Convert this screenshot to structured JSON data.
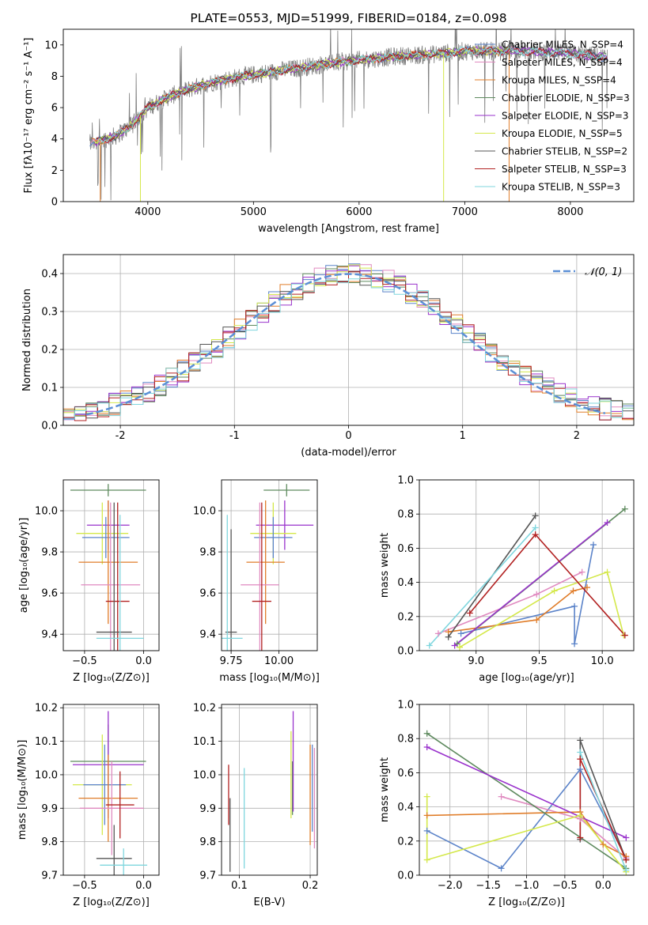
{
  "chart_data": [
    {
      "id": "spectrum",
      "type": "line",
      "title": "PLATE=0553, MJD=51999, FIBERID=0184, z=0.098",
      "xlabel": "wavelength [Angstrom, rest frame]",
      "ylabel": "Flux [fλ10⁻¹⁷ erg cm⁻² s⁻¹ A⁻¹]",
      "xlim": [
        3200,
        8600
      ],
      "ylim": [
        0,
        11
      ],
      "xticks": [
        4000,
        5000,
        6000,
        7000,
        8000
      ],
      "yticks": [
        0,
        2,
        4,
        6,
        8,
        10
      ],
      "grid": false,
      "legend_position": "top-right",
      "data_color": "#808080",
      "data_trend": {
        "x": [
          3450,
          3550,
          3700,
          3850,
          4000,
          4200,
          4400,
          4600,
          4900,
          5200,
          5500,
          5800,
          6100,
          6400,
          6700,
          7000,
          7300,
          7600,
          7900,
          8200,
          8350
        ],
        "y": [
          3.7,
          3.9,
          4.2,
          4.9,
          6.0,
          6.7,
          7.2,
          7.6,
          8.0,
          8.3,
          8.6,
          8.9,
          9.1,
          9.3,
          9.4,
          9.6,
          9.6,
          9.6,
          9.5,
          9.3,
          9.2
        ]
      },
      "series": [
        {
          "name": "Chabrier MILES, N_SSP=4",
          "color": "#5b83c9"
        },
        {
          "name": "Salpeter MILES, N_SSP=4",
          "color": "#e08ac0"
        },
        {
          "name": "Kroupa MILES, N_SSP=4",
          "color": "#e07d2a"
        },
        {
          "name": "Chabrier ELODIE, N_SSP=3",
          "color": "#5e8a5e"
        },
        {
          "name": "Salpeter ELODIE, N_SSP=3",
          "color": "#9932cc"
        },
        {
          "name": "Kroupa ELODIE, N_SSP=5",
          "color": "#d4e84a"
        },
        {
          "name": "Chabrier STELIB, N_SSP=2",
          "color": "#555555"
        },
        {
          "name": "Salpeter STELIB, N_SSP=3",
          "color": "#b22222"
        },
        {
          "name": "Kroupa STELIB, N_SSP=3",
          "color": "#7fd6de"
        }
      ]
    },
    {
      "id": "residuals",
      "type": "histogram",
      "xlabel": "(data-model)/error",
      "ylabel": "Normed distribution",
      "xlim": [
        -2.5,
        2.5
      ],
      "ylim": [
        0,
        0.45
      ],
      "xticks": [
        -2,
        -1,
        0,
        1,
        2
      ],
      "yticks": [
        0.0,
        0.1,
        0.2,
        0.3,
        0.4
      ],
      "grid": true,
      "legend": "𝒩(0, 1)",
      "legend_position": "top-right",
      "gaussian": {
        "mu": 0,
        "sigma": 1,
        "color": "#5b8fd6"
      },
      "bin_width": 0.1,
      "bin_start": -2.5,
      "colors": [
        "#5b83c9",
        "#e08ac0",
        "#e07d2a",
        "#5e8a5e",
        "#9932cc",
        "#d4e84a",
        "#555555",
        "#b22222",
        "#7fd6de"
      ]
    },
    {
      "id": "age-vs-Z",
      "type": "errorbar",
      "xlabel": "Z [log₁₀(Z/Z⊙)]",
      "ylabel": "age  [log₁₀(age/yr)]",
      "xlim": [
        -0.68,
        0.13
      ],
      "ylim": [
        9.32,
        10.15
      ],
      "xticks": [
        -0.5,
        0.0
      ],
      "xticklabels": [
        "−0.5",
        "0.0"
      ],
      "yticks": [
        9.4,
        9.6,
        9.8,
        10.0
      ],
      "grid": true,
      "points": [
        {
          "x": -0.3,
          "y": 10.1,
          "xerr": 0.32,
          "yerr": 0.03,
          "color": "#5e8a5e"
        },
        {
          "x": -0.3,
          "y": 9.93,
          "xerr": 0.18,
          "yerr": 0.12,
          "color": "#9932cc"
        },
        {
          "x": -0.35,
          "y": 9.89,
          "xerr": 0.22,
          "yerr": 0.15,
          "color": "#d4e84a"
        },
        {
          "x": -0.32,
          "y": 9.87,
          "xerr": 0.2,
          "yerr": 0.1,
          "color": "#5b83c9"
        },
        {
          "x": -0.3,
          "y": 9.75,
          "xerr": 0.25,
          "yerr": 0.3,
          "color": "#e07d2a"
        },
        {
          "x": -0.28,
          "y": 9.64,
          "xerr": 0.25,
          "yerr": 0.4,
          "color": "#e08ac0"
        },
        {
          "x": -0.22,
          "y": 9.56,
          "xerr": 0.1,
          "yerr": 0.48,
          "color": "#b22222"
        },
        {
          "x": -0.25,
          "y": 9.41,
          "xerr": 0.15,
          "yerr": 0.63,
          "color": "#555555"
        },
        {
          "x": -0.2,
          "y": 9.38,
          "xerr": 0.2,
          "yerr": 0.6,
          "color": "#7fd6de"
        }
      ]
    },
    {
      "id": "age-vs-mass",
      "type": "errorbar",
      "xlabel": "mass [log₁₀(M/M⊙)]",
      "ylabel": "",
      "xlim": [
        9.7,
        10.2
      ],
      "ylim": [
        9.32,
        10.15
      ],
      "xticks": [
        9.75,
        10.0
      ],
      "xticklabels": [
        "9.75",
        "10.00"
      ],
      "yticks": [
        9.4,
        9.6,
        9.8,
        10.0
      ],
      "grid": true,
      "points": [
        {
          "x": 10.04,
          "y": 10.1,
          "xerr": 0.12,
          "yerr": 0.03,
          "color": "#5e8a5e"
        },
        {
          "x": 10.03,
          "y": 9.93,
          "xerr": 0.15,
          "yerr": 0.12,
          "color": "#9932cc"
        },
        {
          "x": 9.97,
          "y": 9.89,
          "xerr": 0.12,
          "yerr": 0.15,
          "color": "#d4e84a"
        },
        {
          "x": 9.97,
          "y": 9.87,
          "xerr": 0.1,
          "yerr": 0.1,
          "color": "#5b83c9"
        },
        {
          "x": 9.93,
          "y": 9.75,
          "xerr": 0.1,
          "yerr": 0.3,
          "color": "#e07d2a"
        },
        {
          "x": 9.9,
          "y": 9.64,
          "xerr": 0.1,
          "yerr": 0.4,
          "color": "#e08ac0"
        },
        {
          "x": 9.91,
          "y": 9.56,
          "xerr": 0.05,
          "yerr": 0.48,
          "color": "#b22222"
        },
        {
          "x": 9.75,
          "y": 9.41,
          "xerr": 0.03,
          "yerr": 0.5,
          "color": "#555555"
        },
        {
          "x": 9.73,
          "y": 9.38,
          "xerr": 0.08,
          "yerr": 0.6,
          "color": "#7fd6de"
        }
      ]
    },
    {
      "id": "weight-vs-age",
      "type": "line",
      "xlabel": "age  [log₁₀(age/yr)]",
      "ylabel": "mass weight",
      "xlim": [
        8.55,
        10.25
      ],
      "ylim": [
        0,
        1
      ],
      "xticks": [
        9.0,
        9.5,
        10.0
      ],
      "xticklabels": [
        "9.0",
        "9.5",
        "10.0"
      ],
      "yticks": [
        0.0,
        0.2,
        0.4,
        0.6,
        0.8,
        1.0
      ],
      "grid": true,
      "series": [
        {
          "color": "#5b83c9",
          "x": [
            8.88,
            9.78,
            9.78,
            9.93
          ],
          "y": [
            0.1,
            0.26,
            0.04,
            0.62
          ]
        },
        {
          "color": "#e08ac0",
          "x": [
            8.7,
            9.48,
            9.84
          ],
          "y": [
            0.1,
            0.33,
            0.46
          ]
        },
        {
          "color": "#e07d2a",
          "x": [
            8.78,
            9.48,
            9.77,
            9.88
          ],
          "y": [
            0.11,
            0.18,
            0.35,
            0.37
          ]
        },
        {
          "color": "#5e8a5e",
          "x": [
            8.85,
            10.18
          ],
          "y": [
            0.04,
            0.83
          ]
        },
        {
          "color": "#9932cc",
          "x": [
            8.83,
            10.04
          ],
          "y": [
            0.03,
            0.75
          ]
        },
        {
          "color": "#d4e84a",
          "x": [
            8.87,
            9.62,
            10.04,
            10.17
          ],
          "y": [
            0.02,
            0.35,
            0.46,
            0.09
          ]
        },
        {
          "color": "#555555",
          "x": [
            8.78,
            9.47
          ],
          "y": [
            0.08,
            0.79
          ]
        },
        {
          "color": "#b22222",
          "x": [
            8.95,
            9.47,
            10.18
          ],
          "y": [
            0.22,
            0.68,
            0.09
          ]
        },
        {
          "color": "#7fd6de",
          "x": [
            8.63,
            9.47
          ],
          "y": [
            0.03,
            0.72
          ]
        }
      ]
    },
    {
      "id": "mass-vs-Z",
      "type": "errorbar",
      "xlabel": "Z [log₁₀(Z/Z⊙)]",
      "ylabel": "mass [log₁₀(M/M⊙)]",
      "xlim": [
        -0.68,
        0.13
      ],
      "ylim": [
        9.7,
        10.21
      ],
      "xticks": [
        -0.5,
        0.0
      ],
      "xticklabels": [
        "−0.5",
        "0.0"
      ],
      "yticks": [
        9.7,
        9.8,
        9.9,
        10.0,
        10.1,
        10.2
      ],
      "grid": true,
      "points": [
        {
          "x": -0.3,
          "y": 10.04,
          "xerr": 0.32,
          "yerr": 0.11,
          "color": "#5e8a5e"
        },
        {
          "x": -0.3,
          "y": 10.03,
          "xerr": 0.3,
          "yerr": 0.16,
          "color": "#9932cc"
        },
        {
          "x": -0.35,
          "y": 9.97,
          "xerr": 0.25,
          "yerr": 0.15,
          "color": "#d4e84a"
        },
        {
          "x": -0.33,
          "y": 9.97,
          "xerr": 0.18,
          "yerr": 0.12,
          "color": "#5b83c9"
        },
        {
          "x": -0.3,
          "y": 9.93,
          "xerr": 0.25,
          "yerr": 0.13,
          "color": "#e07d2a"
        },
        {
          "x": -0.27,
          "y": 9.9,
          "xerr": 0.27,
          "yerr": 0.14,
          "color": "#e08ac0"
        },
        {
          "x": -0.2,
          "y": 9.91,
          "xerr": 0.12,
          "yerr": 0.1,
          "color": "#b22222"
        },
        {
          "x": -0.25,
          "y": 9.75,
          "xerr": 0.15,
          "yerr": 0.1,
          "color": "#555555"
        },
        {
          "x": -0.17,
          "y": 9.73,
          "xerr": 0.2,
          "yerr": 0.05,
          "color": "#7fd6de"
        }
      ]
    },
    {
      "id": "mass-vs-ebv",
      "type": "errorbar",
      "xlabel": "E(B-V)",
      "ylabel": "",
      "xlim": [
        0.075,
        0.21
      ],
      "ylim": [
        9.7,
        10.21
      ],
      "xticks": [
        0.1,
        0.2
      ],
      "xticklabels": [
        "0.1",
        "0.2"
      ],
      "yticks": [
        9.7,
        9.8,
        9.9,
        10.0,
        10.1,
        10.2
      ],
      "grid": true,
      "points": [
        {
          "x": 0.085,
          "y": 9.94,
          "yerr": 0.09,
          "color": "#b22222"
        },
        {
          "x": 0.087,
          "y": 9.82,
          "yerr": 0.11,
          "color": "#555555"
        },
        {
          "x": 0.107,
          "y": 9.87,
          "yerr": 0.15,
          "color": "#7fd6de"
        },
        {
          "x": 0.173,
          "y": 10.0,
          "yerr": 0.13,
          "color": "#d4e84a"
        },
        {
          "x": 0.175,
          "y": 9.96,
          "yerr": 0.08,
          "color": "#5e8a5e"
        },
        {
          "x": 0.176,
          "y": 10.04,
          "yerr": 0.15,
          "color": "#9932cc"
        },
        {
          "x": 0.2,
          "y": 9.94,
          "yerr": 0.15,
          "color": "#e07d2a"
        },
        {
          "x": 0.203,
          "y": 9.96,
          "yerr": 0.13,
          "color": "#5b83c9"
        },
        {
          "x": 0.206,
          "y": 9.93,
          "yerr": 0.15,
          "color": "#e08ac0"
        }
      ]
    },
    {
      "id": "weight-vs-Z",
      "type": "line",
      "xlabel": "Z [log₁₀(Z/Z⊙)]",
      "ylabel": "mass weight",
      "xlim": [
        -2.4,
        0.4
      ],
      "ylim": [
        0,
        1
      ],
      "xticks": [
        -2.0,
        -1.5,
        -1.0,
        -0.5,
        0.0
      ],
      "xticklabels": [
        "−2.0",
        "−1.5",
        "−1.0",
        "−0.5",
        "0.0"
      ],
      "yticks": [
        0.0,
        0.2,
        0.4,
        0.6,
        0.8,
        1.0
      ],
      "grid": true,
      "series": [
        {
          "color": "#5b83c9",
          "x": [
            -2.3,
            -1.33,
            -0.3,
            0.3
          ],
          "y": [
            0.26,
            0.04,
            0.62,
            0.1
          ]
        },
        {
          "color": "#e08ac0",
          "x": [
            -1.33,
            -0.3,
            0.3
          ],
          "y": [
            0.46,
            0.33,
            0.1
          ]
        },
        {
          "color": "#e07d2a",
          "x": [
            -2.3,
            -0.3,
            0.0,
            0.3
          ],
          "y": [
            0.35,
            0.37,
            0.18,
            0.11
          ]
        },
        {
          "color": "#5e8a5e",
          "x": [
            -2.3,
            0.3
          ],
          "y": [
            0.83,
            0.04
          ]
        },
        {
          "color": "#9932cc",
          "x": [
            -2.3,
            0.3
          ],
          "y": [
            0.75,
            0.22
          ]
        },
        {
          "color": "#d4e84a",
          "x": [
            -2.3,
            -2.3,
            -0.3,
            0.3
          ],
          "y": [
            0.46,
            0.09,
            0.35,
            0.02
          ]
        },
        {
          "color": "#555555",
          "x": [
            -0.3,
            -0.3,
            0.3
          ],
          "y": [
            0.21,
            0.79,
            0.09
          ]
        },
        {
          "color": "#b22222",
          "x": [
            -0.3,
            -0.3,
            0.3
          ],
          "y": [
            0.22,
            0.68,
            0.09
          ]
        },
        {
          "color": "#7fd6de",
          "x": [
            -0.3,
            0.3
          ],
          "y": [
            0.72,
            0.03
          ]
        }
      ]
    }
  ]
}
